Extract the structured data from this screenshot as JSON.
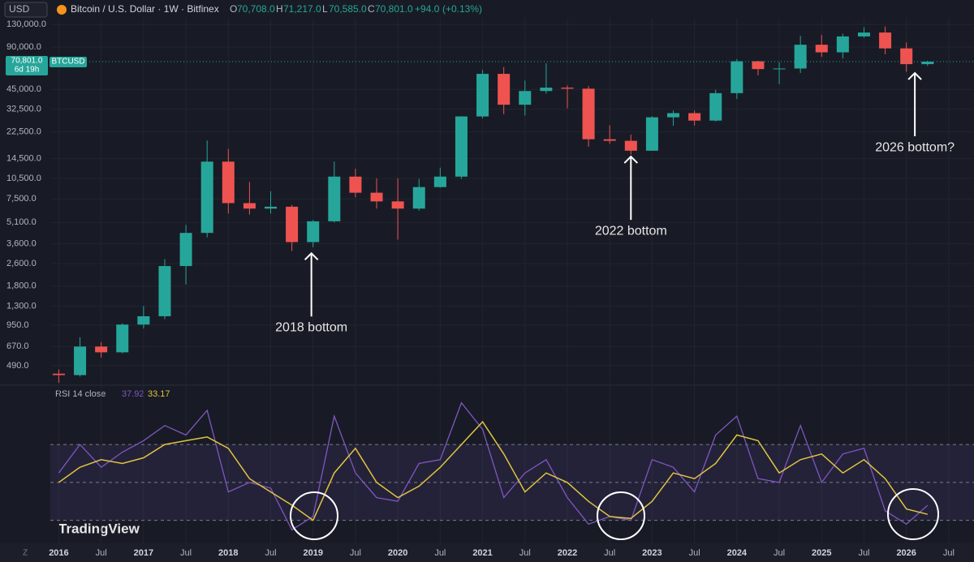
{
  "chart_data": [
    {
      "type": "candlestick",
      "symbol_menu": "USD",
      "title": "Bitcoin / U.S. Dollar · 1W · Bitfinex",
      "ohlc_legend": {
        "o_prefix": "O",
        "o": {
          "value": 70708,
          "label": "70,708.0"
        },
        "h_prefix": "H",
        "h": {
          "value": 71217,
          "label": "71,217.0"
        },
        "l_prefix": "L",
        "l": {
          "value": 70585,
          "label": "70,585.0"
        },
        "c_prefix": "C",
        "c": {
          "value": 70801,
          "label": "70,801.0"
        },
        "change": {
          "value": 94,
          "label": "+94.0"
        },
        "change_pct": {
          "value": 0.13,
          "label": "(+0.13%)"
        }
      },
      "log_scale": true,
      "up_color": "#26a69a",
      "down_color": "#ef5350",
      "x": [
        2016.0,
        2016.25,
        2016.5,
        2016.75,
        2017.0,
        2017.25,
        2017.5,
        2017.75,
        2018.0,
        2018.25,
        2018.5,
        2018.75,
        2019.0,
        2019.25,
        2019.5,
        2019.75,
        2020.0,
        2020.25,
        2020.5,
        2020.75,
        2021.0,
        2021.25,
        2021.5,
        2021.75,
        2022.0,
        2022.25,
        2022.5,
        2022.75,
        2023.0,
        2023.25,
        2023.5,
        2023.75,
        2024.0,
        2024.25,
        2024.5,
        2024.75,
        2025.0,
        2025.25,
        2025.5,
        2025.75,
        2026.0,
        2026.25
      ],
      "open": [
        430,
        420,
        670,
        610,
        960,
        1100,
        2500,
        4300,
        13800,
        7000,
        6400,
        6600,
        3700,
        5200,
        10800,
        8300,
        7200,
        6400,
        9100,
        10800,
        28900,
        58000,
        35000,
        43800,
        46300,
        45500,
        19900,
        19400,
        16500,
        28500,
        30500,
        27000,
        42300,
        71300,
        62700,
        63300,
        93400,
        82500,
        107000,
        114000,
        88000,
        68000
      ],
      "high": [
        460,
        780,
        720,
        980,
        1300,
        2800,
        4900,
        19500,
        17000,
        9900,
        8500,
        6800,
        5300,
        13800,
        12300,
        10500,
        10500,
        10400,
        12500,
        29000,
        61800,
        64800,
        52000,
        69000,
        48000,
        47500,
        25000,
        21500,
        29000,
        31800,
        31800,
        44700,
        73800,
        72000,
        70000,
        108000,
        109500,
        112000,
        124000,
        126000,
        97000,
        72000
      ],
      "low": [
        370,
        410,
        560,
        600,
        900,
        1050,
        1850,
        4000,
        5900,
        5800,
        5900,
        3200,
        3400,
        5100,
        7700,
        6400,
        3850,
        6200,
        9000,
        10400,
        28000,
        30000,
        29300,
        42000,
        33000,
        17600,
        18500,
        15500,
        16500,
        24800,
        24900,
        26600,
        38500,
        56500,
        49000,
        58900,
        76600,
        74500,
        105000,
        80000,
        60000,
        66000
      ],
      "close": [
        420,
        670,
        610,
        960,
        1100,
        2500,
        4300,
        13800,
        7000,
        6400,
        6600,
        3700,
        5200,
        10800,
        8300,
        7200,
        6400,
        9100,
        10800,
        28900,
        58000,
        35000,
        43800,
        46300,
        45500,
        19900,
        19400,
        16500,
        28500,
        30500,
        27000,
        42300,
        71300,
        62700,
        63300,
        93400,
        82500,
        107000,
        114000,
        88000,
        68000,
        70801
      ],
      "ylim": [
        356,
        145000
      ],
      "yticks": [
        {
          "value": 130000,
          "label": "130,000.0"
        },
        {
          "value": 90000,
          "label": "90,000.0"
        },
        {
          "value": 45000,
          "label": "45,000.0"
        },
        {
          "value": 32500,
          "label": "32,500.0"
        },
        {
          "value": 22500,
          "label": "22,500.0"
        },
        {
          "value": 14500,
          "label": "14,500.0"
        },
        {
          "value": 10500,
          "label": "10,500.0"
        },
        {
          "value": 7500,
          "label": "7,500.0"
        },
        {
          "value": 5100,
          "label": "5,100.0"
        },
        {
          "value": 3600,
          "label": "3,600.0"
        },
        {
          "value": 2600,
          "label": "2,600.0"
        },
        {
          "value": 1800,
          "label": "1,800.0"
        },
        {
          "value": 1300,
          "label": "1,300.0"
        },
        {
          "value": 950,
          "label": "950.0"
        },
        {
          "value": 670,
          "label": "670.0"
        },
        {
          "value": 490,
          "label": "490.0"
        }
      ],
      "xlim": [
        2015.9,
        2026.75
      ],
      "xticks": [
        2016,
        {
          "value": 2016.5,
          "label": "Jul"
        },
        2017,
        {
          "value": 2017.5,
          "label": "Jul"
        },
        2018,
        {
          "value": 2018.5,
          "label": "Jul"
        },
        2019,
        {
          "value": 2019.5,
          "label": "Jul"
        },
        2020,
        {
          "value": 2020.5,
          "label": "Jul"
        },
        2021,
        {
          "value": 2021.5,
          "label": "Jul"
        },
        2022,
        {
          "value": 2022.5,
          "label": "Jul"
        },
        2023,
        {
          "value": 2023.5,
          "label": "Jul"
        },
        2024,
        {
          "value": 2024.5,
          "label": "Jul"
        },
        2025,
        {
          "value": 2025.5,
          "label": "Jul"
        },
        2026,
        {
          "value": 2026.5,
          "label": "Jul"
        }
      ],
      "last_price": {
        "value": 70801,
        "label": "70,801.0"
      },
      "countdown": "6d 19h",
      "price_tag": "BTCUSD",
      "annotations": [
        {
          "text": "2018 bottom",
          "x": 2018.98,
          "y": 3250
        },
        {
          "text": "2022 bottom",
          "x": 2022.75,
          "y": 15800
        },
        {
          "text": "2026 bottom?",
          "x": 2026.1,
          "y": 62000
        }
      ],
      "grid": true
    },
    {
      "type": "line",
      "title": "RSI 14 close",
      "x": [
        2016.0,
        2016.25,
        2016.5,
        2016.75,
        2017.0,
        2017.25,
        2017.5,
        2017.75,
        2018.0,
        2018.25,
        2018.5,
        2018.75,
        2019.0,
        2019.25,
        2019.5,
        2019.75,
        2020.0,
        2020.25,
        2020.5,
        2020.75,
        2021.0,
        2021.25,
        2021.5,
        2021.75,
        2022.0,
        2022.25,
        2022.5,
        2022.75,
        2023.0,
        2023.25,
        2023.5,
        2023.75,
        2024.0,
        2024.25,
        2024.5,
        2024.75,
        2025.0,
        2025.25,
        2025.5,
        2025.75,
        2026.0,
        2026.25
      ],
      "series": [
        {
          "color": "#7e57c2",
          "values": [
            55,
            70,
            58,
            66,
            72,
            80,
            75,
            88,
            45,
            50,
            47,
            25,
            32,
            85,
            55,
            42,
            40,
            60,
            62,
            92,
            78,
            42,
            55,
            62,
            42,
            28,
            32,
            30,
            62,
            58,
            45,
            75,
            85,
            52,
            50,
            80,
            50,
            65,
            68,
            35,
            28,
            37.92
          ]
        },
        {
          "color": "#e0c341",
          "values": [
            50,
            58,
            62,
            60,
            63,
            70,
            72,
            74,
            68,
            52,
            45,
            38,
            30,
            55,
            68,
            50,
            42,
            48,
            58,
            70,
            82,
            65,
            45,
            55,
            50,
            40,
            32,
            31,
            40,
            55,
            52,
            60,
            75,
            72,
            55,
            62,
            65,
            55,
            62,
            52,
            36,
            33.17
          ]
        }
      ],
      "xlim": [
        2015.9,
        2026.75
      ],
      "ylim": [
        20,
        97
      ],
      "levels": [
        30,
        50,
        70
      ],
      "band_color": "#7e57c2"
    }
  ],
  "branding": {
    "logo": "TradingView",
    "zoom_button": "Z"
  }
}
